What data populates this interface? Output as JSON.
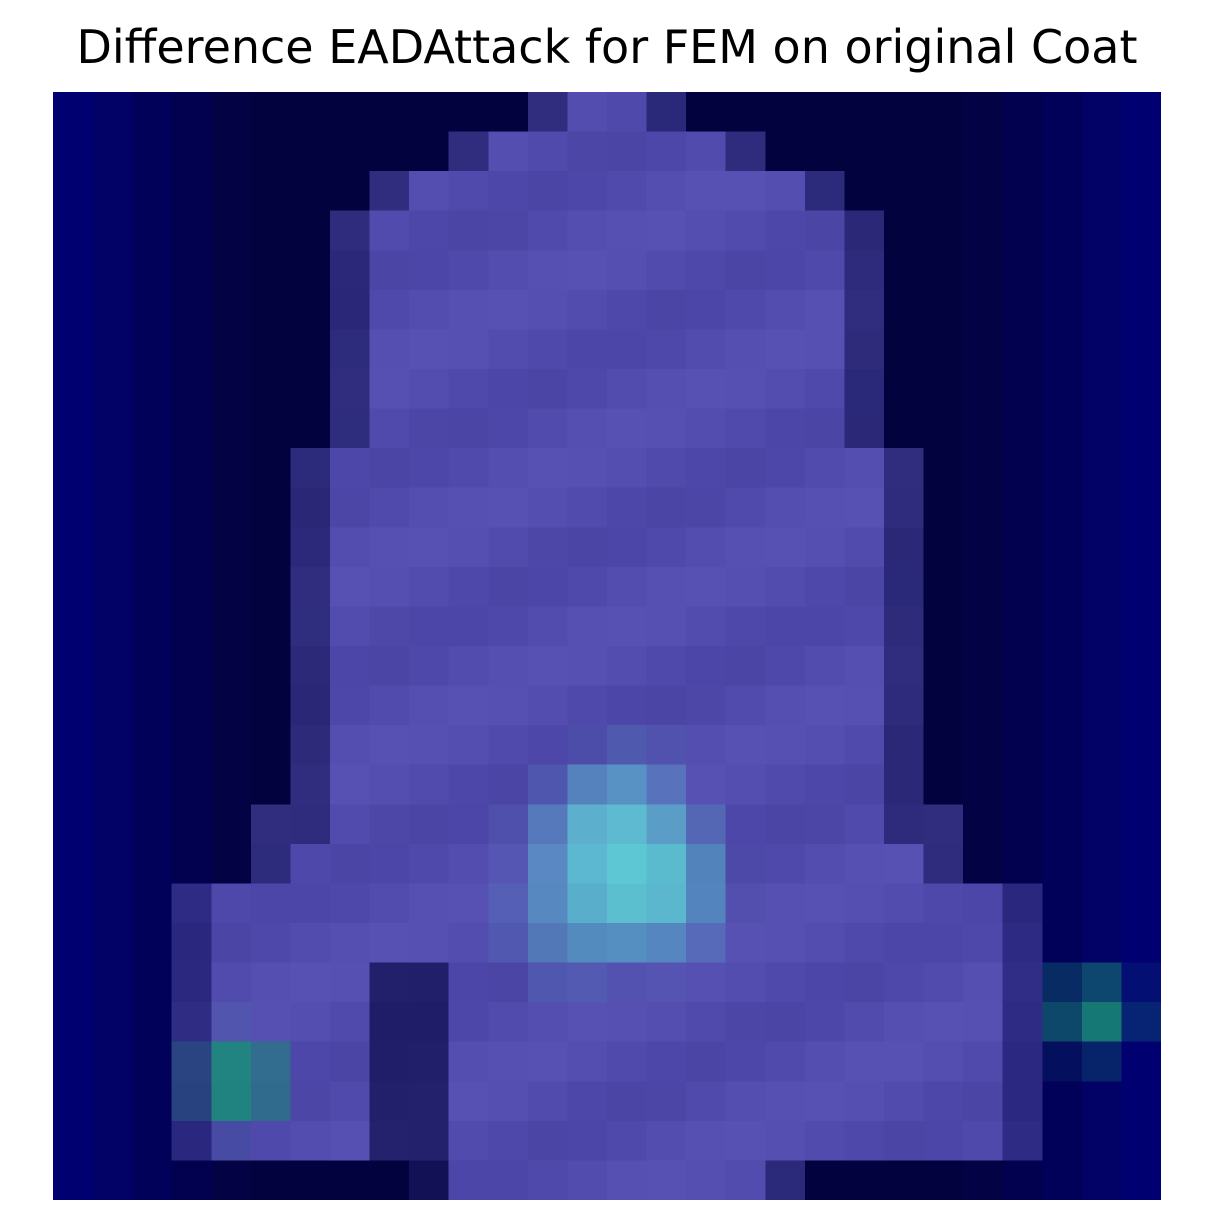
{
  "title": "Difference EADAttack for FEM on original Coat",
  "image": {
    "description_colors": {
      "background": "#02023f",
      "coat_body": "#5a58b0",
      "highlight_cyan": "#5fe0dc",
      "highlight_teal": "#178a7e"
    }
  }
}
